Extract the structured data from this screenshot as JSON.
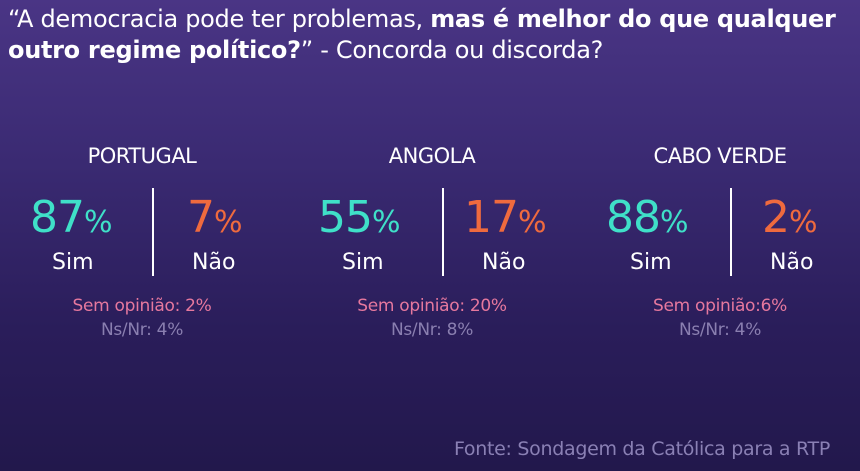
{
  "title": {
    "part1": "“A democracia pode ter problemas, ",
    "part2_bold": "mas é melhor do que qualquer outro regime político?",
    "part3": "” - Concorda ou discorda?"
  },
  "countries": [
    {
      "name": "PORTUGAL",
      "sim_value": "87",
      "nao_value": "7",
      "sim_label": "Sim",
      "nao_label": "Não",
      "sem_opiniao": "Sem opinião: 2%",
      "ns_nr": "Ns/Nr: 4%"
    },
    {
      "name": "ANGOLA",
      "sim_value": "55",
      "nao_value": "17",
      "sim_label": "Sim",
      "nao_label": "Não",
      "sem_opiniao": "Sem opinião: 20%",
      "ns_nr": "Ns/Nr: 8%"
    },
    {
      "name": "CABO VERDE",
      "sim_value": "88",
      "nao_value": "2",
      "sim_label": "Sim",
      "nao_label": "Não",
      "sem_opiniao": "Sem opinião:6%",
      "ns_nr": "Ns/Nr: 4%"
    }
  ],
  "percent_sign": "%",
  "source": "Fonte: Sondagem da Católica para a RTP",
  "colors": {
    "sim": "#3fe0c8",
    "nao": "#ef6a3e",
    "sem_opiniao": "#e6789e",
    "ns_nr": "#8a7fb0"
  }
}
